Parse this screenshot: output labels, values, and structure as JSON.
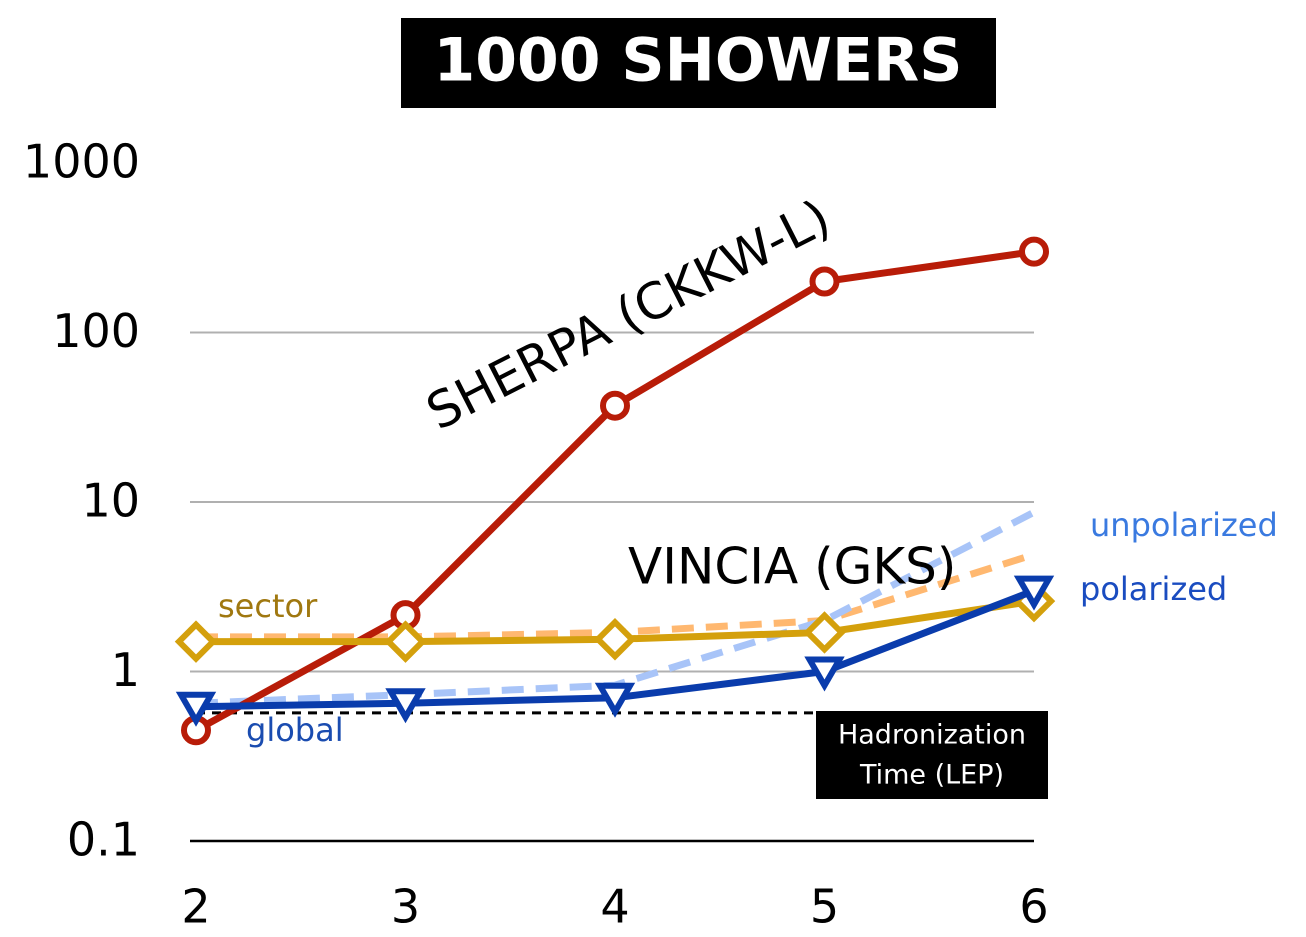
{
  "chart_data": {
    "type": "line",
    "title": "1000 SHOWERS",
    "log_y": true,
    "grid": true,
    "x": [
      2,
      3,
      4,
      5,
      6
    ],
    "xlim": [
      2,
      6
    ],
    "xticks": [
      2,
      3,
      4,
      5,
      6
    ],
    "ylim": [
      0.1,
      1000
    ],
    "yticks": [
      0.1,
      1,
      10,
      100,
      1000
    ],
    "series": [
      {
        "color": "#ffb870",
        "dashed": true,
        "values": [
          1.6,
          1.6,
          1.7,
          2.0,
          4.9
        ]
      },
      {
        "color": "#a8c4f8",
        "dashed": true,
        "values": [
          0.65,
          0.73,
          0.83,
          2.0,
          8.7
        ]
      },
      {
        "name": "SHERPA (CKKW-L)",
        "color": "#b81c08",
        "marker": "circle",
        "values": [
          0.45,
          2.15,
          37,
          200,
          300
        ]
      },
      {
        "color": "#d4a00c",
        "marker": "diamond",
        "values": [
          1.5,
          1.5,
          1.55,
          1.7,
          2.6
        ]
      },
      {
        "color": "#0a3cac",
        "marker": "triangle-down",
        "values": [
          0.62,
          0.65,
          0.7,
          1.0,
          3.0
        ]
      }
    ],
    "reference_line": {
      "value": 0.57,
      "x": [
        2,
        5
      ],
      "color": "#000000",
      "label": [
        "Hadronization",
        "Time (LEP)"
      ]
    },
    "annotations": [
      "VINCIA (GKS)",
      "sector",
      "global",
      "unpolarized",
      "polarized"
    ]
  }
}
